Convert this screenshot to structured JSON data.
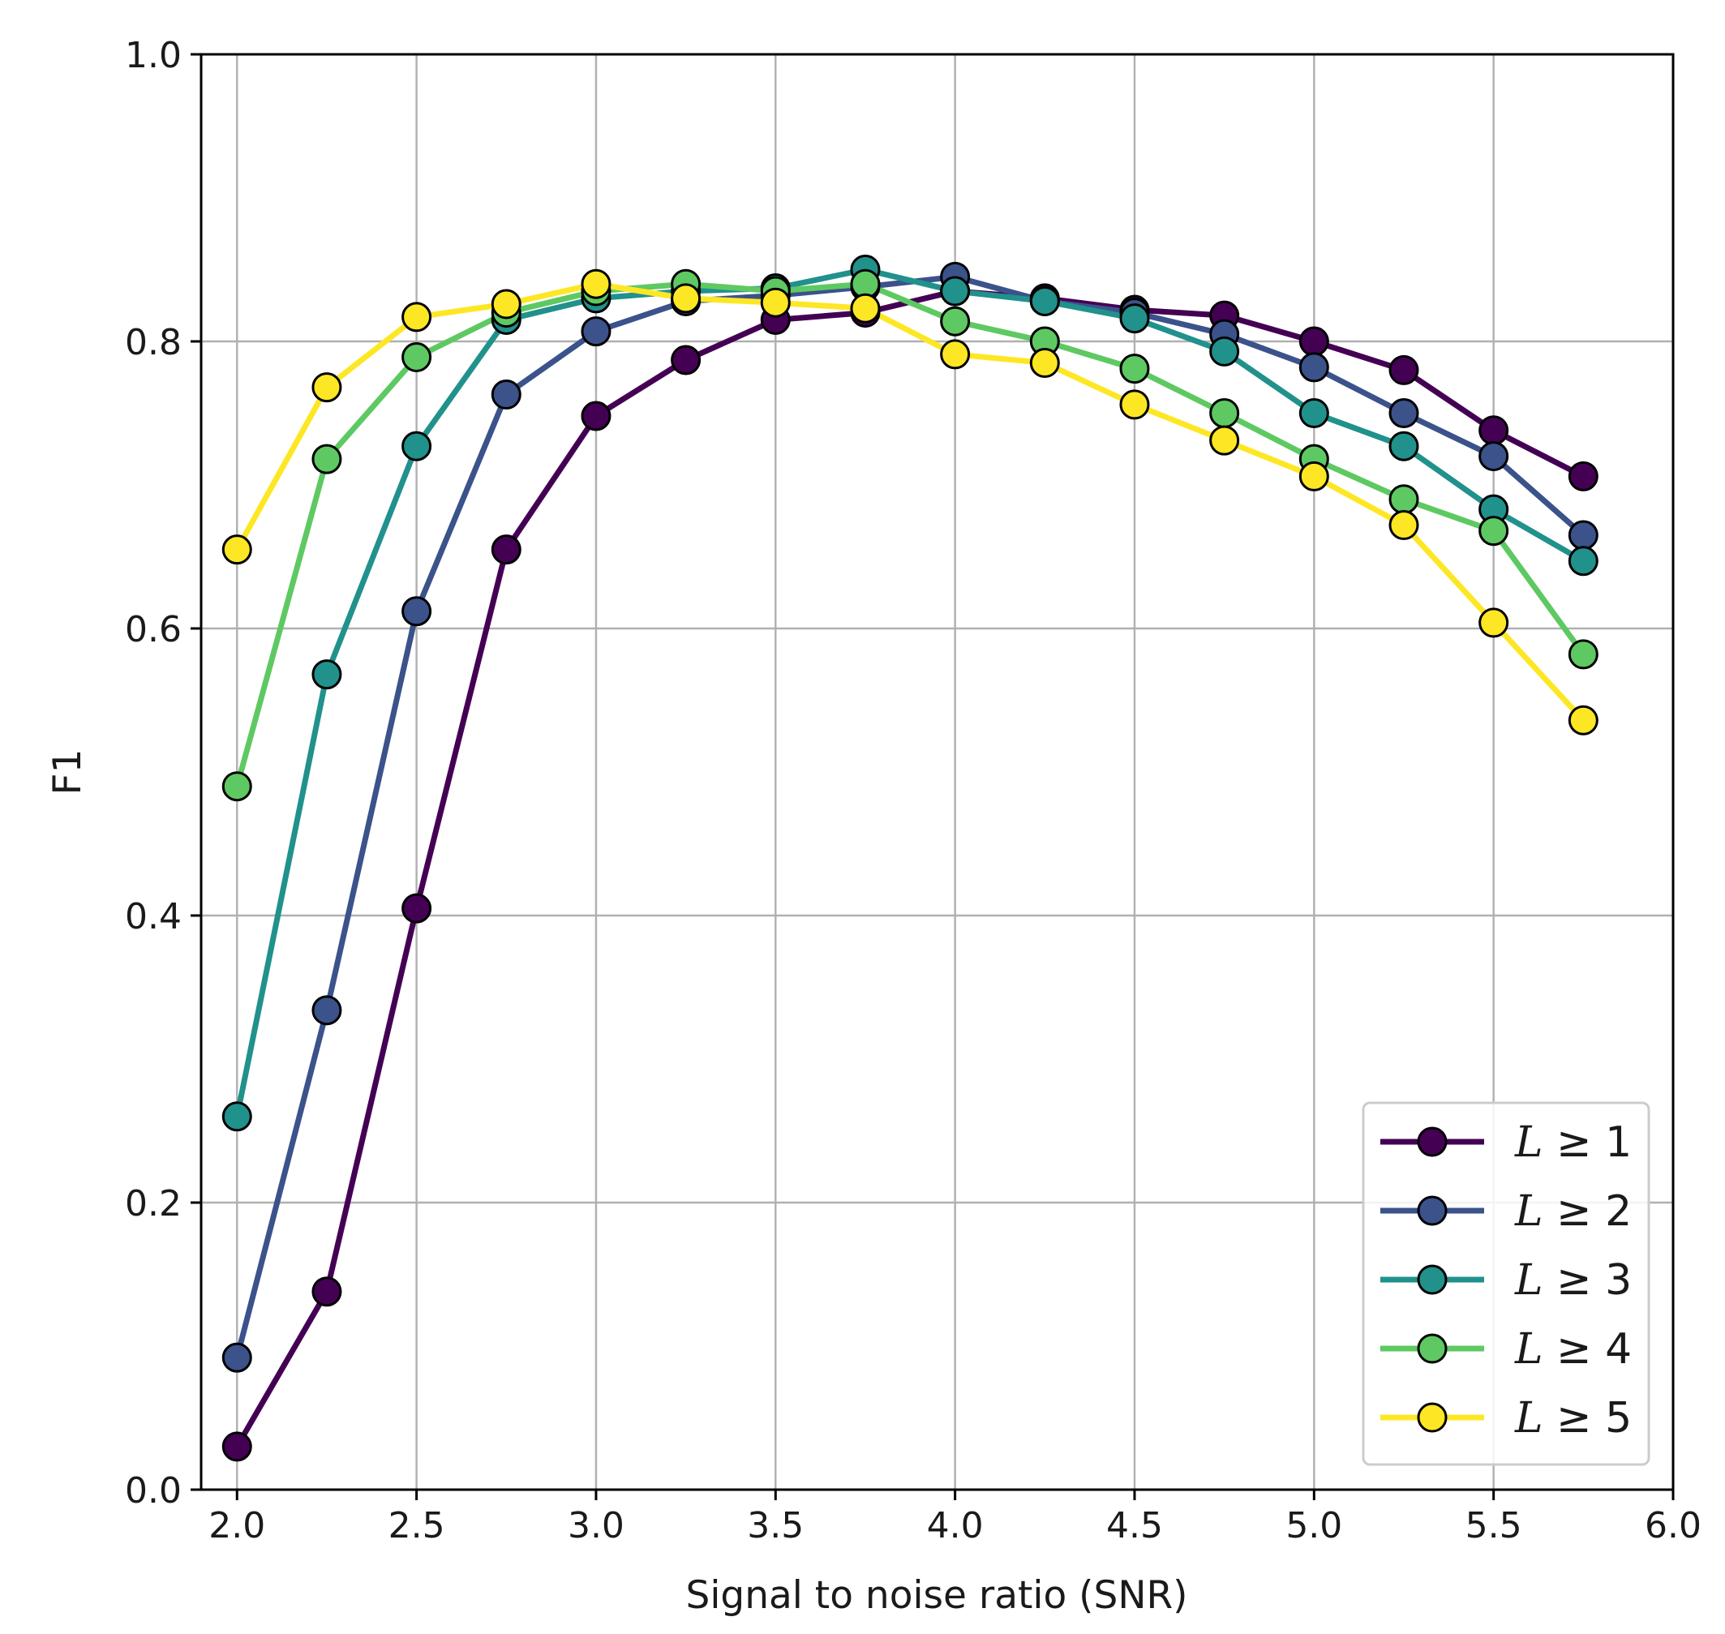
{
  "chart_data": {
    "type": "line",
    "title": "",
    "xlabel": "Signal to noise ratio (SNR)",
    "ylabel": "F1",
    "xlim": [
      1.9,
      6.0
    ],
    "ylim": [
      0.0,
      1.0
    ],
    "xticks": [
      2.0,
      2.5,
      3.0,
      3.5,
      4.0,
      4.5,
      5.0,
      5.5,
      6.0
    ],
    "xtick_labels": [
      "2.0",
      "2.5",
      "3.0",
      "3.5",
      "4.0",
      "4.5",
      "5.0",
      "5.5",
      "6.0"
    ],
    "yticks": [
      0.0,
      0.2,
      0.4,
      0.6,
      0.8,
      1.0
    ],
    "ytick_labels": [
      "0.0",
      "0.2",
      "0.4",
      "0.6",
      "0.8",
      "1.0"
    ],
    "grid": true,
    "legend_position": "lower-right",
    "x": [
      2.0,
      2.25,
      2.5,
      2.75,
      3.0,
      3.25,
      3.5,
      3.75,
      4.0,
      4.25,
      4.5,
      4.75,
      5.0,
      5.25,
      5.5,
      5.75
    ],
    "series": [
      {
        "name": "L ≥ 1",
        "legend_var": "L",
        "legend_rel": "≥ 1",
        "color": "#440154",
        "values": [
          0.03,
          0.138,
          0.405,
          0.655,
          0.748,
          0.787,
          0.815,
          0.82,
          0.835,
          0.83,
          0.822,
          0.818,
          0.8,
          0.78,
          0.738,
          0.706
        ]
      },
      {
        "name": "L ≥ 2",
        "legend_var": "L",
        "legend_rel": "≥ 2",
        "color": "#3b528b",
        "values": [
          0.092,
          0.334,
          0.612,
          0.763,
          0.807,
          0.828,
          0.832,
          0.838,
          0.845,
          0.828,
          0.82,
          0.805,
          0.782,
          0.75,
          0.72,
          0.665
        ]
      },
      {
        "name": "L ≥ 3",
        "legend_var": "L",
        "legend_rel": "≥ 3",
        "color": "#21918c",
        "values": [
          0.26,
          0.568,
          0.727,
          0.815,
          0.83,
          0.835,
          0.837,
          0.85,
          0.835,
          0.828,
          0.816,
          0.793,
          0.75,
          0.727,
          0.683,
          0.647
        ]
      },
      {
        "name": "L ≥ 4",
        "legend_var": "L",
        "legend_rel": "≥ 4",
        "color": "#5ec962",
        "values": [
          0.49,
          0.718,
          0.789,
          0.82,
          0.835,
          0.84,
          0.835,
          0.84,
          0.814,
          0.8,
          0.781,
          0.75,
          0.718,
          0.69,
          0.668,
          0.582
        ]
      },
      {
        "name": "L ≥ 5",
        "legend_var": "L",
        "legend_rel": "≥ 5",
        "color": "#fde725",
        "values": [
          0.655,
          0.768,
          0.817,
          0.826,
          0.84,
          0.83,
          0.827,
          0.823,
          0.791,
          0.785,
          0.756,
          0.731,
          0.706,
          0.672,
          0.604,
          0.536
        ]
      }
    ]
  }
}
